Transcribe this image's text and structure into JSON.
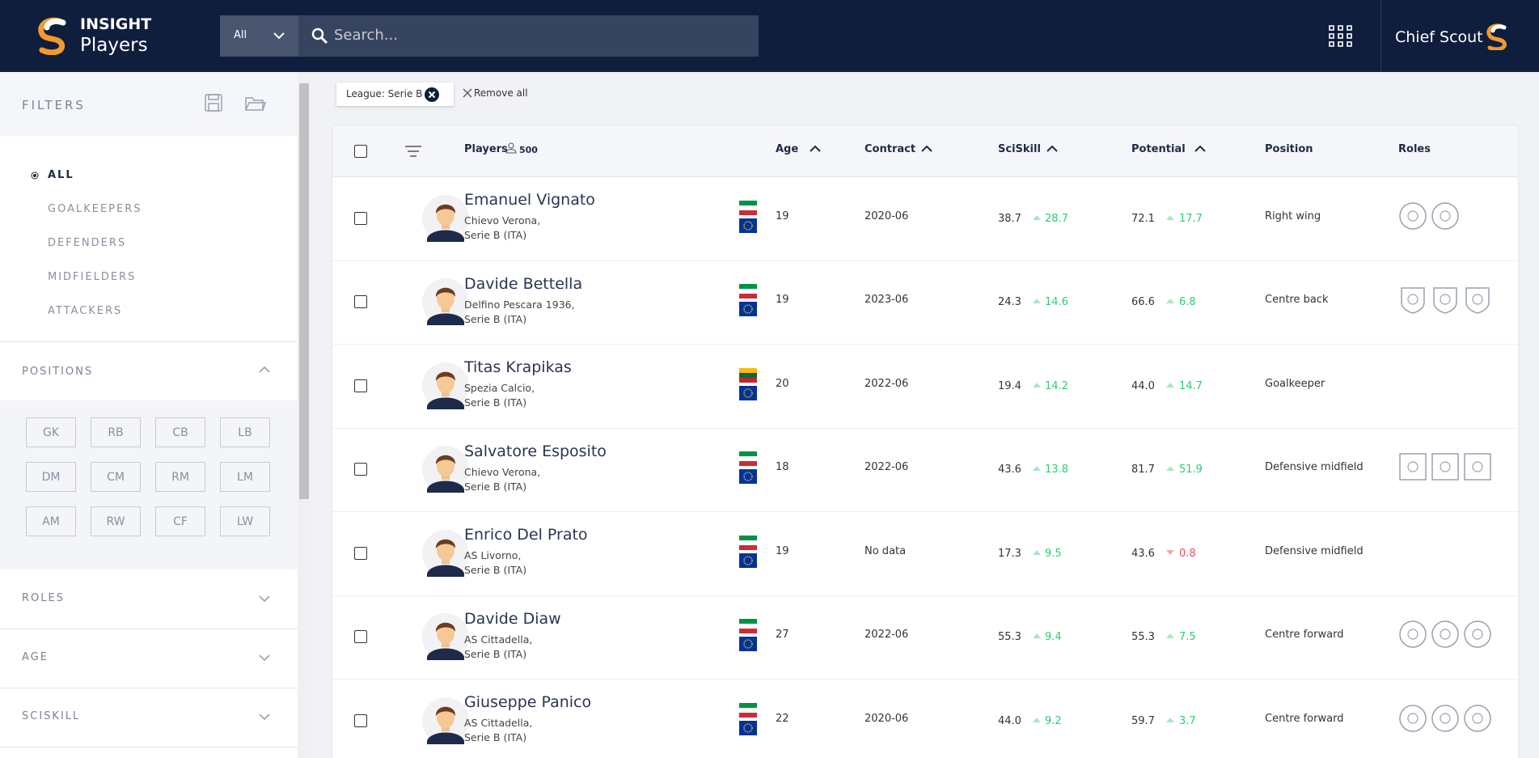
{
  "header": {
    "logo_top": "INSIGHT",
    "logo_bottom": "Players",
    "search_scope": "All",
    "search_placeholder": "Search...",
    "user": "Chief Scout"
  },
  "sidebar": {
    "title": "FILTERS",
    "groups": [
      "ALL",
      "GOALKEEPERS",
      "DEFENDERS",
      "MIDFIELDERS",
      "ATTACKERS"
    ],
    "positions_title": "POSITIONS",
    "positions": [
      "GK",
      "RB",
      "CB",
      "LB",
      "DM",
      "CM",
      "RM",
      "LM",
      "AM",
      "RW",
      "CF",
      "LW"
    ],
    "sections": [
      "ROLES",
      "AGE",
      "SCISKILL"
    ]
  },
  "chips": {
    "active": "League: Serie B",
    "remove_all": "Remove all"
  },
  "table": {
    "columns": {
      "players": "Players",
      "count": "500",
      "age": "Age",
      "contract": "Contract",
      "sciskill": "SciSkill",
      "potential": "Potential",
      "position": "Position",
      "roles": "Roles"
    },
    "rows": [
      {
        "name": "Emanuel Vignato",
        "club": "Chievo Verona,",
        "league": "Serie B (ITA)",
        "flag_colors": [
          "#009246",
          "#ffffff",
          "#ce2b37"
        ],
        "age": "19",
        "contract": "2020-06",
        "sciskill": "38.7",
        "sciskill_delta": "28.7",
        "sciskill_dir": "up",
        "potential": "72.1",
        "potential_delta": "17.7",
        "potential_dir": "up",
        "position": "Right wing",
        "role_icons": 2,
        "role_shape": "circle"
      },
      {
        "name": "Davide Bettella",
        "club": "Delfino Pescara 1936,",
        "league": "Serie B (ITA)",
        "flag_colors": [
          "#009246",
          "#ffffff",
          "#ce2b37"
        ],
        "age": "19",
        "contract": "2023-06",
        "sciskill": "24.3",
        "sciskill_delta": "14.6",
        "sciskill_dir": "up",
        "potential": "66.6",
        "potential_delta": "6.8",
        "potential_dir": "up",
        "position": "Centre back",
        "role_icons": 3,
        "role_shape": "shield"
      },
      {
        "name": "Titas Krapikas",
        "club": "Spezia Calcio,",
        "league": "Serie B (ITA)",
        "flag_colors": [
          "#fdb913",
          "#006a44",
          "#c1272d"
        ],
        "age": "20",
        "contract": "2022-06",
        "sciskill": "19.4",
        "sciskill_delta": "14.2",
        "sciskill_dir": "up",
        "potential": "44.0",
        "potential_delta": "14.7",
        "potential_dir": "up",
        "position": "Goalkeeper",
        "role_icons": 0,
        "role_shape": "circle"
      },
      {
        "name": "Salvatore Esposito",
        "club": "Chievo Verona,",
        "league": "Serie B (ITA)",
        "flag_colors": [
          "#009246",
          "#ffffff",
          "#ce2b37"
        ],
        "age": "18",
        "contract": "2022-06",
        "sciskill": "43.6",
        "sciskill_delta": "13.8",
        "sciskill_dir": "up",
        "potential": "81.7",
        "potential_delta": "51.9",
        "potential_dir": "up",
        "position": "Defensive midfield",
        "role_icons": 3,
        "role_shape": "square"
      },
      {
        "name": "Enrico Del Prato",
        "club": "AS Livorno,",
        "league": "Serie B (ITA)",
        "flag_colors": [
          "#009246",
          "#ffffff",
          "#ce2b37"
        ],
        "age": "19",
        "contract": "No data",
        "sciskill": "17.3",
        "sciskill_delta": "9.5",
        "sciskill_dir": "up",
        "potential": "43.6",
        "potential_delta": "0.8",
        "potential_dir": "down",
        "position": "Defensive midfield",
        "role_icons": 0,
        "role_shape": "circle"
      },
      {
        "name": "Davide Diaw",
        "club": "AS Cittadella,",
        "league": "Serie B (ITA)",
        "flag_colors": [
          "#009246",
          "#ffffff",
          "#ce2b37"
        ],
        "age": "27",
        "contract": "2022-06",
        "sciskill": "55.3",
        "sciskill_delta": "9.4",
        "sciskill_dir": "up",
        "potential": "55.3",
        "potential_delta": "7.5",
        "potential_dir": "up",
        "position": "Centre forward",
        "role_icons": 3,
        "role_shape": "circle"
      },
      {
        "name": "Giuseppe Panico",
        "club": "AS Cittadella,",
        "league": "Serie B (ITA)",
        "flag_colors": [
          "#009246",
          "#ffffff",
          "#ce2b37"
        ],
        "age": "22",
        "contract": "2020-06",
        "sciskill": "44.0",
        "sciskill_delta": "9.2",
        "sciskill_dir": "up",
        "potential": "59.7",
        "potential_delta": "3.7",
        "potential_dir": "up",
        "position": "Centre forward",
        "role_icons": 3,
        "role_shape": "circle"
      }
    ]
  }
}
